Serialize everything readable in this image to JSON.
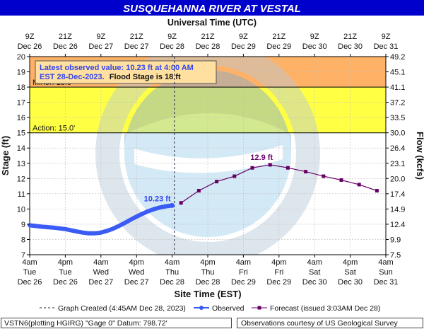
{
  "title": "SUSQUEHANNA RIVER AT VESTAL",
  "top_axis_title": "Universal Time (UTC)",
  "top_ticks": [
    [
      "9Z",
      "Dec 26"
    ],
    [
      "21Z",
      "Dec 26"
    ],
    [
      "9Z",
      "Dec 27"
    ],
    [
      "21Z",
      "Dec 27"
    ],
    [
      "9Z",
      "Dec 28"
    ],
    [
      "21Z",
      "Dec 28"
    ],
    [
      "9Z",
      "Dec 29"
    ],
    [
      "21Z",
      "Dec 29"
    ],
    [
      "9Z",
      "Dec 30"
    ],
    [
      "21Z",
      "Dec 30"
    ],
    [
      "9Z",
      "Dec 31"
    ]
  ],
  "bottom_ticks": [
    [
      "4am",
      "Tue",
      "Dec 26"
    ],
    [
      "4pm",
      "Tue",
      "Dec 26"
    ],
    [
      "4am",
      "Wed",
      "Dec 27"
    ],
    [
      "4pm",
      "Wed",
      "Dec 27"
    ],
    [
      "4am",
      "Thu",
      "Dec 28"
    ],
    [
      "4pm",
      "Thu",
      "Dec 28"
    ],
    [
      "4am",
      "Fri",
      "Dec 29"
    ],
    [
      "4pm",
      "Fri",
      "Dec 29"
    ],
    [
      "4am",
      "Sat",
      "Dec 30"
    ],
    [
      "4pm",
      "Sat",
      "Dec 30"
    ],
    [
      "4am",
      "Sun",
      "Dec 31"
    ]
  ],
  "xlabel": "Site Time (EST)",
  "ylabel_left": "Stage (ft)",
  "ylabel_right": "Flow (kcfs)",
  "info_box": {
    "line1": "Latest observed value: 10.23 ft at 4:00 AM",
    "line2_blue": "EST 28-Dec-2023.",
    "line2_black": "Flood Stage is 18 ft"
  },
  "legend": {
    "created": "Graph Created (4:45AM Dec 28, 2023)",
    "observed": "Observed",
    "forecast": "Forecast (issued 3:03AM Dec 28)"
  },
  "footer": {
    "left": "VSTN6(plotting HGIRG) \"Gage 0\" Datum: 798.72'",
    "right": "Observations courtesy of US Geological Survey"
  },
  "colors": {
    "title_bg": "#0000cc",
    "observed": "#3b5bf5",
    "forecast": "#660066",
    "minor_band": "#ffff44",
    "moderate_band": "#ffb266"
  },
  "chart_data": {
    "type": "line",
    "x_axis": "hours since 4am EST Dec 26",
    "xlim": [
      0,
      120
    ],
    "ylim": [
      7,
      20
    ],
    "yticks": [
      7,
      8,
      9,
      10,
      11,
      12,
      13,
      14,
      15,
      16,
      17,
      18,
      19,
      20
    ],
    "flow_ticks": [
      "7.5",
      "9.9",
      "12.4",
      "14.9",
      "17.4",
      "20.0",
      "23.1",
      "26.4",
      "30.0",
      "33.5",
      "37.2",
      "41.1",
      "45.1",
      "49.2"
    ],
    "thresholds": [
      {
        "name": "Action",
        "label": "Action: 15.0'",
        "value": 15.0
      },
      {
        "name": "Minor",
        "label": "Minor: 18.0'",
        "value": 18.0
      }
    ],
    "created_x": 48.75,
    "series": [
      {
        "name": "Observed",
        "x": [
          0,
          4,
          8,
          12,
          16,
          18,
          20,
          22,
          24,
          26,
          28,
          30,
          32,
          34,
          36,
          38,
          40,
          42,
          44,
          46,
          48
        ],
        "y": [
          8.93,
          8.84,
          8.78,
          8.68,
          8.52,
          8.45,
          8.4,
          8.4,
          8.45,
          8.56,
          8.7,
          8.88,
          9.08,
          9.3,
          9.5,
          9.69,
          9.86,
          10.0,
          10.1,
          10.18,
          10.23
        ]
      },
      {
        "name": "Forecast",
        "x": [
          51,
          57,
          63,
          69,
          75,
          81,
          87,
          93,
          99,
          105,
          111,
          117
        ],
        "y": [
          10.4,
          11.2,
          11.8,
          12.15,
          12.7,
          12.9,
          12.7,
          12.45,
          12.15,
          11.9,
          11.6,
          11.2
        ]
      }
    ],
    "annotations": [
      {
        "text": "10.23 ft",
        "x": 48,
        "y": 10.23
      },
      {
        "text": "12.9 ft",
        "x": 81,
        "y": 12.9
      }
    ]
  }
}
